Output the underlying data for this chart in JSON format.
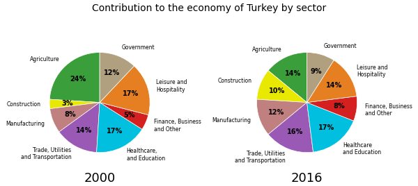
{
  "title": "Contribution to the economy of Turkey by sector",
  "title_fontsize": 10,
  "chart2000": {
    "year": "2000",
    "labels": [
      "Agriculture",
      "Construction",
      "Manufacturing",
      "Trade, Utilities\nand Transportation",
      "Healthcare,\nand Education",
      "Finance, Business\nand Other",
      "Leisure and\nHospitality",
      "Government"
    ],
    "values": [
      24,
      3,
      8,
      14,
      17,
      5,
      17,
      12
    ],
    "colors": [
      "#3a9e3a",
      "#e8e800",
      "#c08080",
      "#9b59b6",
      "#00bfdf",
      "#d42020",
      "#e67e22",
      "#b0a080"
    ]
  },
  "chart2016": {
    "year": "2016",
    "labels": [
      "Agriculture",
      "Construction",
      "Manufacturing",
      "Trade, Utilities\nand Transportation",
      "Healthcare\nand Education",
      "Finance, Business\nand Other",
      "Leisure and\nHospitality",
      "Government"
    ],
    "values": [
      14,
      10,
      12,
      16,
      17,
      8,
      14,
      9
    ],
    "colors": [
      "#3a9e3a",
      "#e8e800",
      "#c08080",
      "#9b59b6",
      "#00bfdf",
      "#d42020",
      "#e67e22",
      "#b0a080"
    ]
  },
  "label_fontsize": 5.5,
  "pct_fontsize": 7,
  "year_fontsize": 13,
  "background_color": "#ffffff"
}
